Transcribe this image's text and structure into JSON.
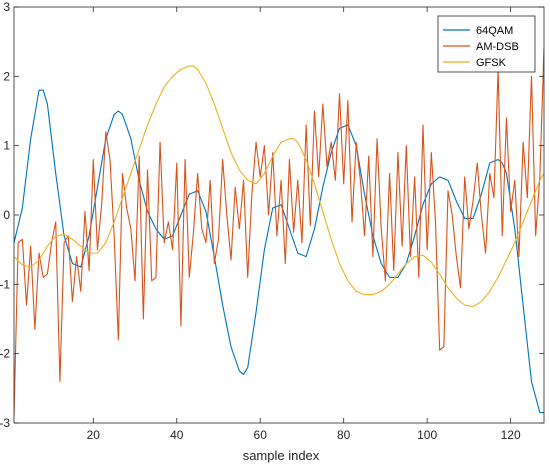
{
  "chart_data": {
    "type": "line",
    "title": "",
    "xlabel": "sample index",
    "ylabel": "",
    "xlim": [
      1,
      128
    ],
    "ylim": [
      -3,
      3
    ],
    "x_ticks": [
      20,
      40,
      60,
      80,
      100,
      120
    ],
    "y_ticks": [
      -3,
      -2,
      -1,
      0,
      1,
      2,
      3
    ],
    "grid": false,
    "legend_position": "top-right",
    "series": [
      {
        "name": "64QAM",
        "color": "#0072BD",
        "x": [
          1,
          3,
          5,
          7,
          8,
          9,
          11,
          13,
          15,
          17,
          19,
          21,
          23,
          25,
          26,
          27,
          29,
          31,
          33,
          35,
          37,
          39,
          41,
          43,
          45,
          47,
          49,
          51,
          53,
          55,
          56,
          57,
          59,
          61,
          63,
          65,
          67,
          69,
          71,
          73,
          75,
          77,
          79,
          81,
          83,
          85,
          87,
          89,
          91,
          93,
          95,
          97,
          99,
          101,
          103,
          105,
          107,
          109,
          111,
          113,
          115,
          117,
          118,
          119,
          121,
          123,
          125,
          127,
          128
        ],
        "y": [
          -0.4,
          0.1,
          1.1,
          1.8,
          1.8,
          1.6,
          0.6,
          -0.3,
          -0.7,
          -0.75,
          -0.3,
          0.4,
          1.1,
          1.45,
          1.5,
          1.45,
          1.1,
          0.5,
          0.05,
          -0.2,
          -0.35,
          -0.3,
          0.0,
          0.3,
          0.35,
          0.05,
          -0.6,
          -1.3,
          -1.9,
          -2.25,
          -2.3,
          -2.2,
          -1.4,
          -0.5,
          0.1,
          0.15,
          -0.2,
          -0.55,
          -0.6,
          -0.2,
          0.4,
          0.9,
          1.25,
          1.3,
          1.0,
          0.3,
          -0.3,
          -0.7,
          -0.9,
          -0.9,
          -0.7,
          -0.3,
          0.15,
          0.45,
          0.55,
          0.5,
          0.2,
          -0.05,
          -0.05,
          0.3,
          0.75,
          0.8,
          0.75,
          0.6,
          -0.2,
          -1.3,
          -2.4,
          -2.85,
          -2.85
        ]
      },
      {
        "name": "AM-DSB",
        "color": "#D95319",
        "x": [
          1,
          2,
          3,
          4,
          5,
          6,
          7,
          8,
          9,
          10,
          11,
          12,
          13,
          14,
          15,
          16,
          17,
          18,
          19,
          20,
          21,
          22,
          23,
          24,
          25,
          26,
          27,
          28,
          29,
          30,
          31,
          32,
          33,
          34,
          35,
          36,
          37,
          38,
          39,
          40,
          41,
          42,
          43,
          44,
          45,
          46,
          47,
          48,
          49,
          50,
          51,
          52,
          53,
          54,
          55,
          56,
          57,
          58,
          59,
          60,
          61,
          62,
          63,
          64,
          65,
          66,
          67,
          68,
          69,
          70,
          71,
          72,
          73,
          74,
          75,
          76,
          77,
          78,
          79,
          80,
          81,
          82,
          83,
          84,
          85,
          86,
          87,
          88,
          89,
          90,
          91,
          92,
          93,
          94,
          95,
          96,
          97,
          98,
          99,
          100,
          101,
          102,
          103,
          104,
          105,
          106,
          107,
          108,
          109,
          110,
          111,
          112,
          113,
          114,
          115,
          116,
          117,
          118,
          119,
          120,
          121,
          122,
          123,
          124,
          125,
          126,
          127,
          128
        ],
        "y": [
          -2.9,
          -0.4,
          -0.35,
          -1.3,
          -0.45,
          -1.65,
          -0.55,
          -0.9,
          -0.85,
          -0.4,
          -0.1,
          -2.4,
          -0.4,
          -0.3,
          -1.25,
          -0.6,
          -1.1,
          0.05,
          -0.8,
          0.8,
          -0.5,
          0.15,
          1.2,
          0.8,
          -0.3,
          -1.8,
          0.6,
          0.1,
          -0.2,
          -0.95,
          0.85,
          -1.5,
          0.65,
          -0.95,
          -0.9,
          1.05,
          -0.4,
          -0.1,
          -0.5,
          0.75,
          -1.6,
          0.8,
          -0.9,
          -0.25,
          0.6,
          -0.2,
          -0.4,
          0.5,
          -0.7,
          -0.35,
          0.8,
          0.0,
          -0.65,
          0.4,
          -0.2,
          0.5,
          -0.9,
          0.3,
          1.05,
          0.55,
          1.0,
          0.0,
          0.9,
          -0.3,
          0.5,
          -0.7,
          0.8,
          -0.25,
          0.5,
          -0.4,
          1.3,
          -0.15,
          1.5,
          0.55,
          1.6,
          0.7,
          1.05,
          0.5,
          1.75,
          0.45,
          1.65,
          -0.1,
          1.05,
          0.5,
          -0.3,
          0.85,
          -0.6,
          1.1,
          -0.2,
          -0.95,
          0.6,
          -0.8,
          0.9,
          -0.45,
          1.0,
          -0.6,
          0.55,
          -0.9,
          1.3,
          -0.5,
          0.9,
          -0.1,
          -1.95,
          -1.9,
          0.35,
          0.0,
          -0.6,
          -1.05,
          0.55,
          -0.2,
          0.2,
          0.75,
          0.0,
          -0.55,
          0.6,
          0.25,
          2.1,
          -0.3,
          1.4,
          0.05,
          0.5,
          -0.6,
          1.05,
          0.25,
          2.0,
          -0.3,
          0.55,
          2.4
        ]
      },
      {
        "name": "GFSK",
        "color": "#EDB120",
        "x": [
          1,
          3,
          5,
          7,
          9,
          11,
          13,
          15,
          17,
          19,
          21,
          23,
          25,
          27,
          29,
          31,
          33,
          35,
          37,
          39,
          41,
          43,
          44,
          45,
          47,
          49,
          51,
          53,
          55,
          57,
          59,
          61,
          63,
          65,
          67,
          68,
          69,
          71,
          73,
          75,
          77,
          79,
          81,
          83,
          85,
          87,
          89,
          91,
          93,
          95,
          97,
          99,
          101,
          103,
          105,
          107,
          109,
          111,
          113,
          115,
          117,
          119,
          121,
          123,
          125,
          127,
          128
        ],
        "y": [
          -0.6,
          -0.72,
          -0.75,
          -0.65,
          -0.45,
          -0.3,
          -0.28,
          -0.35,
          -0.45,
          -0.55,
          -0.55,
          -0.4,
          -0.1,
          0.25,
          0.6,
          0.95,
          1.3,
          1.6,
          1.85,
          2.0,
          2.1,
          2.15,
          2.15,
          2.1,
          1.9,
          1.6,
          1.25,
          0.9,
          0.65,
          0.5,
          0.45,
          0.6,
          0.85,
          1.05,
          1.1,
          1.1,
          1.05,
          0.8,
          0.45,
          0.05,
          -0.35,
          -0.7,
          -0.95,
          -1.1,
          -1.15,
          -1.15,
          -1.1,
          -1.0,
          -0.85,
          -0.7,
          -0.6,
          -0.58,
          -0.68,
          -0.85,
          -1.05,
          -1.2,
          -1.3,
          -1.32,
          -1.25,
          -1.1,
          -0.9,
          -0.65,
          -0.4,
          -0.1,
          0.2,
          0.5,
          0.6
        ]
      }
    ]
  }
}
